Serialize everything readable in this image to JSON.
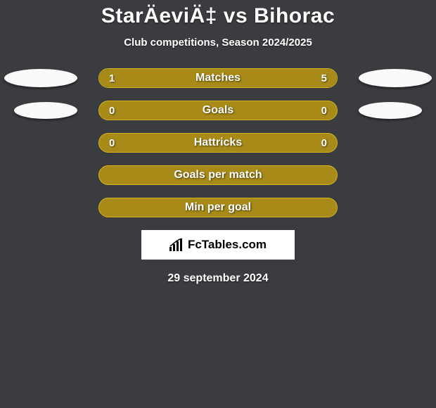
{
  "colors": {
    "background": "#3a3c40",
    "accent": "#a78a18",
    "accent_bright": "#d4b41f",
    "white": "#ffffff",
    "brand_box_bg": "#ffffff"
  },
  "header": {
    "title": "StarÄeviÄ‡ vs Bihorac",
    "subtitle": "Club competitions, Season 2024/2025"
  },
  "stats": [
    {
      "label": "Matches",
      "left_value": "1",
      "right_value": "5",
      "left_pct": 18,
      "right_pct": 82,
      "show_logos": true,
      "logo_size": "large"
    },
    {
      "label": "Goals",
      "left_value": "0",
      "right_value": "0",
      "left_pct": 0,
      "right_pct": 0,
      "show_logos": true,
      "logo_size": "small"
    },
    {
      "label": "Hattricks",
      "left_value": "0",
      "right_value": "0",
      "left_pct": 0,
      "right_pct": 0,
      "show_logos": false
    },
    {
      "label": "Goals per match",
      "left_value": "",
      "right_value": "",
      "left_pct": 0,
      "right_pct": 0,
      "show_logos": false
    },
    {
      "label": "Min per goal",
      "left_value": "",
      "right_value": "",
      "left_pct": 0,
      "right_pct": 0,
      "show_logos": false
    }
  ],
  "brand": {
    "text": "FcTables.com"
  },
  "footer": {
    "date": "29 september 2024"
  }
}
